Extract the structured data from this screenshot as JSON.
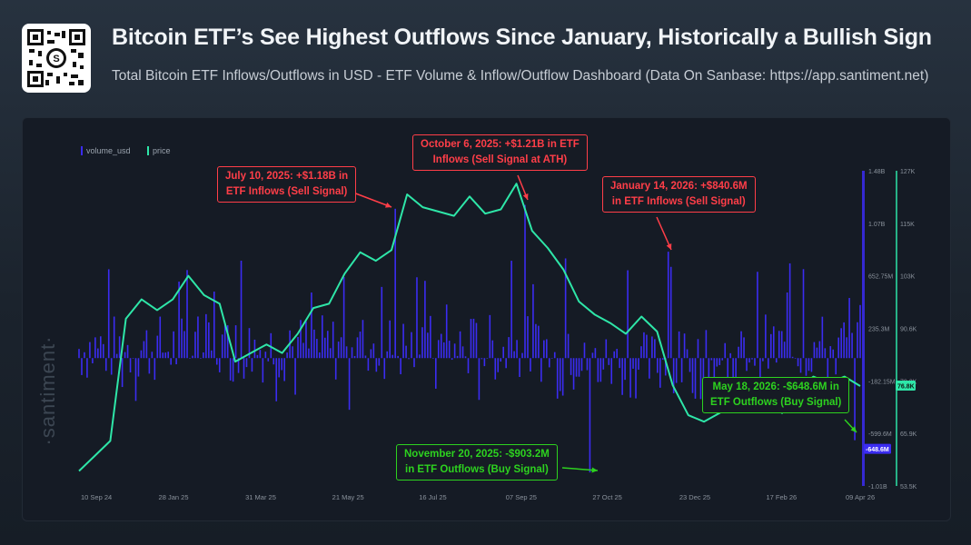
{
  "header": {
    "title": "Bitcoin ETF’s See Highest Outflows Since January, Historically a Bullish Sign",
    "subtitle": "Total Bitcoin ETF Inflows/Outflows in USD - ETF Volume & Inflow/Outflow Dashboard (Data On Sanbase: https://app.santiment.net)"
  },
  "watermark": "·santiment·",
  "legend": [
    {
      "label": "volume_usd",
      "color": "#3b2cf2"
    },
    {
      "label": "price",
      "color": "#2ee6a8"
    }
  ],
  "annotations": [
    {
      "id": "jul",
      "lines": [
        "July 10, 2025: +$1.18B in",
        "ETF Inflows (Sell Signal)"
      ],
      "color": "red"
    },
    {
      "id": "oct",
      "lines": [
        "October 6, 2025: +$1.21B in ETF",
        "Inflows (Sell Signal at ATH)"
      ],
      "color": "red"
    },
    {
      "id": "jan",
      "lines": [
        "January 14, 2026: +$840.6M",
        "in ETF Inflows (Sell Signal)"
      ],
      "color": "red"
    },
    {
      "id": "nov",
      "lines": [
        "November 20, 2025: -$903.2M",
        "in ETF Outflows (Buy Signal)"
      ],
      "color": "green"
    },
    {
      "id": "may",
      "lines": [
        "May 18, 2026: -$648.6M in",
        "ETF Outflows (Buy Signal)"
      ],
      "color": "green"
    }
  ],
  "colors": {
    "volume": "#3b2cf2",
    "price": "#2ee6a8",
    "sell": "#ff3e48",
    "buy": "#2dd21f"
  },
  "chart_data": {
    "type": "bar+line",
    "x_ticks": [
      "10 Sep 24",
      "28 Jan 25",
      "31 Mar 25",
      "21 May 25",
      "16 Jul 25",
      "07 Sep 25",
      "27 Oct 25",
      "23 Dec 25",
      "17 Feb 26",
      "09 Apr 26"
    ],
    "volume_axis": {
      "ticks": [
        "1.48B",
        "1.07B",
        "652.75M",
        "235.3M",
        "-182.15M",
        "-599.6M",
        "-1.01B"
      ],
      "range": [
        -1.01,
        1.48
      ],
      "unit": "B USD"
    },
    "price_axis": {
      "ticks": [
        "127K",
        "115K",
        "103K",
        "90.6K",
        "78.3K",
        "65.9K",
        "53.5K"
      ],
      "range": [
        53.5,
        127
      ],
      "unit": "K USD"
    },
    "latest_price_label": "76.8K",
    "latest_volume_label": "-648.6M",
    "price_series": {
      "name": "price",
      "x": [
        0,
        0.02,
        0.04,
        0.06,
        0.08,
        0.1,
        0.12,
        0.14,
        0.16,
        0.18,
        0.2,
        0.22,
        0.24,
        0.26,
        0.28,
        0.3,
        0.32,
        0.34,
        0.36,
        0.38,
        0.4,
        0.42,
        0.44,
        0.46,
        0.48,
        0.5,
        0.52,
        0.54,
        0.56,
        0.58,
        0.6,
        0.62,
        0.64,
        0.66,
        0.68,
        0.7,
        0.72,
        0.74,
        0.76,
        0.78,
        0.8,
        0.82,
        0.84,
        0.86,
        0.88,
        0.9,
        0.92,
        0.94,
        0.96,
        0.98,
        1.0
      ],
      "y": [
        57.0,
        60.5,
        64.0,
        92.5,
        97.0,
        94.5,
        97.0,
        102.5,
        98.0,
        96.0,
        82.5,
        84.5,
        86.5,
        84.5,
        89.0,
        95.0,
        96.0,
        103.0,
        108.0,
        106.0,
        108.5,
        121.5,
        118.5,
        117.5,
        116.5,
        121.0,
        117.0,
        118.0,
        124.0,
        113.0,
        109.0,
        104.0,
        96.5,
        93.5,
        91.5,
        89.0,
        93.0,
        89.5,
        77.0,
        70.0,
        68.5,
        70.5,
        73.5,
        71.0,
        73.0,
        70.5,
        76.0,
        79.0,
        77.5,
        79.0,
        76.8
      ]
    },
    "volume_series": {
      "name": "volume_usd",
      "unit": "B USD",
      "highlights": [
        {
          "date": "July 10, 2025",
          "value": 1.18
        },
        {
          "date": "October 6, 2025",
          "value": 1.21
        },
        {
          "date": "November 20, 2025",
          "value": -0.9032
        },
        {
          "date": "January 14, 2026",
          "value": 0.8406
        },
        {
          "date": "May 18, 2026",
          "value": -0.6486
        }
      ]
    }
  }
}
